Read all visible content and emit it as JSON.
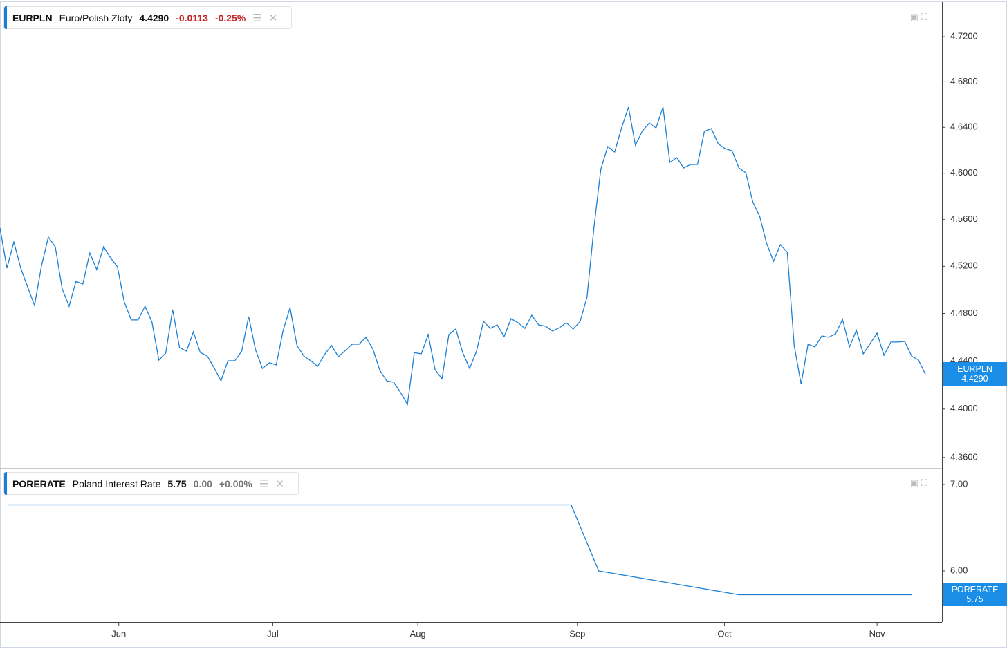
{
  "chart_data": [
    {
      "type": "line",
      "symbol": "EURPLN",
      "name": "Euro/Polish Zloty",
      "last": "4.4290",
      "change": "-0.0113",
      "change_pct": "-0.25%",
      "color": "#1a7fd4",
      "change_color": "#c62828",
      "log": true,
      "xlim": [
        0,
        136.4
      ],
      "ylim": [
        4.3514,
        4.7509
      ],
      "yticks": [
        {
          "value": 4.72,
          "label": "4.7200"
        },
        {
          "value": 4.68,
          "label": "4.6800"
        },
        {
          "value": 4.64,
          "label": "4.6400"
        },
        {
          "value": 4.6,
          "label": "4.6000"
        },
        {
          "value": 4.56,
          "label": "4.5600"
        },
        {
          "value": 4.52,
          "label": "4.5200"
        },
        {
          "value": 4.48,
          "label": "4.4800"
        },
        {
          "value": 4.44,
          "label": "4.4400"
        },
        {
          "value": 4.4,
          "label": "4.4000"
        },
        {
          "value": 4.36,
          "label": "4.3600"
        }
      ],
      "values": [
        4.5527,
        4.5184,
        4.5408,
        4.5184,
        4.5025,
        4.4867,
        4.5202,
        4.545,
        4.5367,
        4.5008,
        4.4861,
        4.5072,
        4.5049,
        4.5314,
        4.5172,
        4.5367,
        4.5272,
        4.5196,
        4.4896,
        4.4745,
        4.4745,
        4.4861,
        4.4727,
        4.4408,
        4.4466,
        4.4832,
        4.4512,
        4.4483,
        4.4645,
        4.4471,
        4.4442,
        4.4344,
        4.4234,
        4.4402,
        4.4402,
        4.4483,
        4.4774,
        4.4494,
        4.4338,
        4.4385,
        4.4368,
        4.4657,
        4.4849,
        4.453,
        4.4442,
        4.4402,
        4.4356,
        4.4454,
        4.453,
        4.4436,
        4.4489,
        4.4541,
        4.4541,
        4.4599,
        4.45,
        4.4321,
        4.4234,
        4.4223,
        4.4137,
        4.4039,
        4.4471,
        4.446,
        4.4622,
        4.4327,
        4.4252,
        4.4622,
        4.4669,
        4.4471,
        4.4338,
        4.4483,
        4.4733,
        4.4674,
        4.4704,
        4.4605,
        4.4756,
        4.4722,
        4.4674,
        4.4785,
        4.4704,
        4.4692,
        4.4652,
        4.468,
        4.4722,
        4.4669,
        4.4733,
        4.4938,
        4.5527,
        4.6034,
        4.6232,
        4.6184,
        4.6395,
        4.6577,
        4.6244,
        4.6365,
        4.6437,
        4.6395,
        4.6577,
        4.6094,
        4.6136,
        4.6046,
        4.6076,
        4.6076,
        4.6365,
        4.6389,
        4.6256,
        4.6214,
        4.6196,
        4.6046,
        4.6004,
        4.5753,
        4.5628,
        4.5396,
        4.5243,
        4.5385,
        4.532,
        4.453,
        4.4206,
        4.4541,
        4.4518,
        4.4611,
        4.4599,
        4.4628,
        4.475,
        4.4518,
        4.4657,
        4.446,
        4.4547,
        4.4634,
        4.4448,
        4.4559,
        4.4559,
        4.4564,
        4.4442,
        4.4408,
        4.429
      ]
    },
    {
      "type": "line",
      "symbol": "PORERATE",
      "name": "Poland Interest Rate",
      "last": "5.75",
      "change": "0.00",
      "change_pct": "+0.00%",
      "color": "#1a7fd4",
      "change_color": "#777777",
      "log": true,
      "xlim": [
        0,
        136.4
      ],
      "ylim": [
        5.4765,
        7.1837
      ],
      "yticks": [
        {
          "value": 7,
          "label": "7.00"
        },
        {
          "value": 6,
          "label": "6.00"
        }
      ],
      "xticks": [
        {
          "value": 17.2,
          "label": "Jun"
        },
        {
          "value": 39.5,
          "label": "Jul"
        },
        {
          "value": 60.5,
          "label": "Aug"
        },
        {
          "value": 83.6,
          "label": "Sep"
        },
        {
          "value": 104.9,
          "label": "Oct"
        },
        {
          "value": 127.0,
          "label": "Nov"
        }
      ],
      "x": [
        1.1,
        82.7,
        86.7,
        107.0,
        132.1
      ],
      "values": [
        6.75,
        6.75,
        6.0,
        5.75,
        5.75
      ]
    }
  ]
}
